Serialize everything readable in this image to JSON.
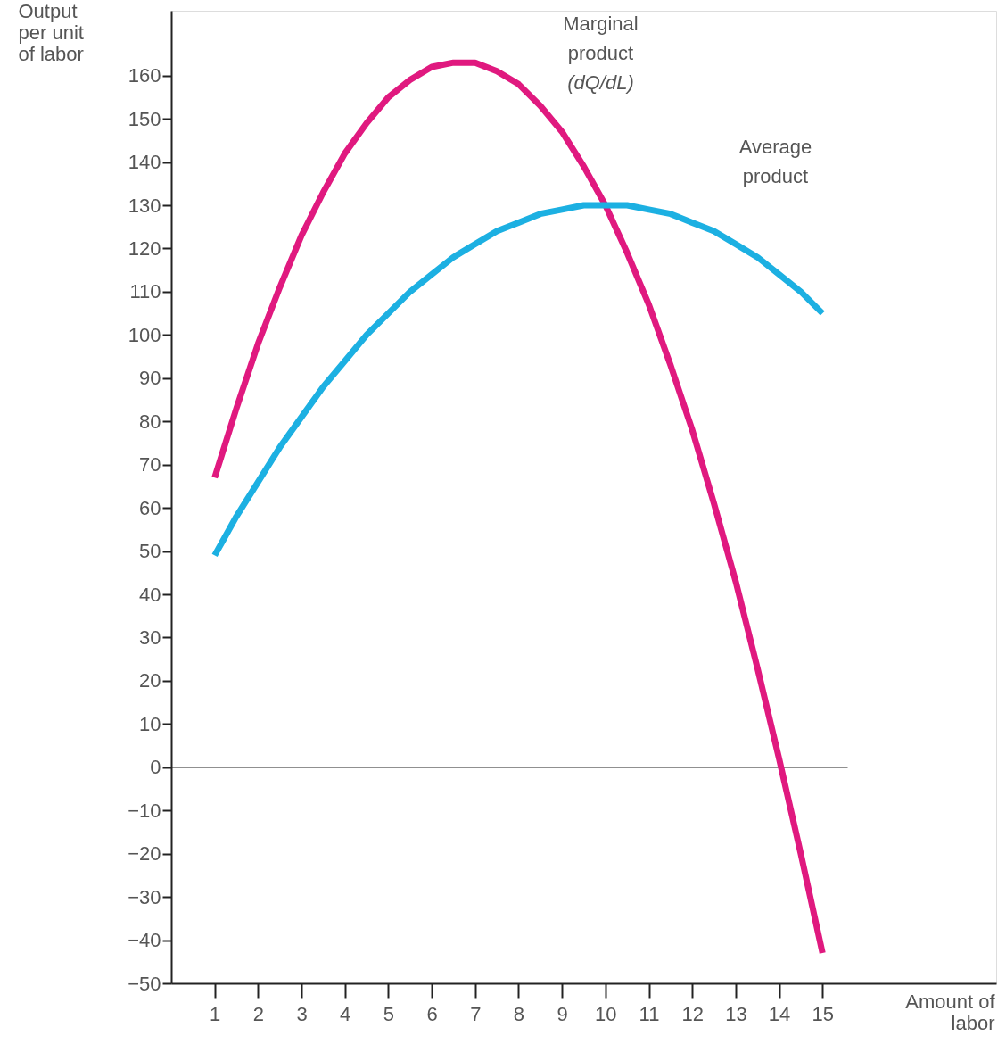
{
  "chart_data": {
    "type": "line",
    "xlabel": "Amount of labor",
    "ylabel": "Output per unit of labor",
    "x": [
      1,
      1.5,
      2,
      2.5,
      3,
      3.5,
      4,
      4.5,
      5,
      5.5,
      6,
      6.5,
      7,
      7.5,
      8,
      8.5,
      9,
      9.5,
      10,
      10.5,
      11,
      11.5,
      12,
      12.5,
      13,
      13.5,
      14,
      14.5,
      15
    ],
    "series": [
      {
        "name": "Marginal product (dQ/dL)",
        "color": "#e0197f",
        "values": [
          67,
          83,
          98,
          111,
          123,
          133,
          142,
          149,
          155,
          159,
          162,
          163,
          163,
          161,
          158,
          153,
          147,
          139,
          130,
          119,
          107,
          93,
          78,
          61,
          43,
          23,
          2,
          -20,
          -43
        ]
      },
      {
        "name": "Average product",
        "color": "#1cb0e2",
        "values": [
          49,
          58,
          66,
          74,
          81,
          88,
          94,
          100,
          105,
          110,
          114,
          118,
          121,
          124,
          126,
          128,
          129,
          130,
          130,
          130,
          129,
          128,
          126,
          124,
          121,
          118,
          114,
          110,
          105
        ]
      }
    ],
    "xlim": [
      0,
      19
    ],
    "xticks": [
      1,
      2,
      3,
      4,
      5,
      6,
      7,
      8,
      9,
      10,
      11,
      12,
      13,
      14,
      15
    ],
    "ylim": [
      -50,
      175
    ],
    "yticks": [
      -50,
      -40,
      -30,
      -20,
      -10,
      0,
      10,
      20,
      30,
      40,
      50,
      60,
      70,
      80,
      90,
      100,
      110,
      120,
      130,
      140,
      150,
      160
    ],
    "ref_lines": [
      {
        "axis": "y",
        "value": 0,
        "color": "#222222"
      }
    ],
    "grid": false,
    "marker": "none",
    "line_style": "solid"
  }
}
